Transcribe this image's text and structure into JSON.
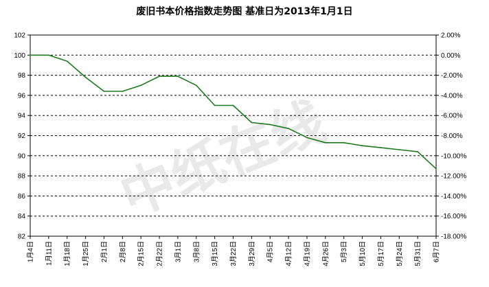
{
  "watermark": "中纸在线",
  "chart_data": {
    "type": "line",
    "title": "废旧书本价格指数走势图 基准日为2013年1月1日",
    "xlabel": "",
    "ylabel": "",
    "categories": [
      "1月4日",
      "1月11日",
      "1月18日",
      "1月25日",
      "2月1日",
      "2月8日",
      "2月15日",
      "2月22日",
      "3月1日",
      "3月8日",
      "3月15日",
      "3月22日",
      "3月29日",
      "4月5日",
      "4月12日",
      "4月19日",
      "4月26日",
      "5月3日",
      "5月10日",
      "5月17日",
      "5月24日",
      "5月31日",
      "6月7日"
    ],
    "series": [
      {
        "color": "#1a7a1a",
        "values": [
          100.0,
          100.0,
          99.4,
          97.8,
          96.4,
          96.4,
          97.0,
          97.9,
          97.9,
          97.0,
          95.0,
          95.0,
          93.3,
          93.1,
          92.7,
          91.8,
          91.3,
          91.3,
          91.0,
          90.8,
          90.6,
          90.4,
          88.7
        ]
      }
    ],
    "ylim": [
      82,
      102
    ],
    "yticks": [
      "82",
      "84",
      "86",
      "88",
      "90",
      "92",
      "94",
      "96",
      "98",
      "100",
      "102"
    ],
    "y2lim": [
      -18,
      2
    ],
    "y2ticks": [
      "-18.00%",
      "-16.00%",
      "-14.00%",
      "-12.00%",
      "-10.00%",
      "-8.00%",
      "-6.00%",
      "-4.00%",
      "-2.00%",
      "0.00%",
      "2.00%"
    ],
    "grid": true,
    "legend": "none"
  }
}
